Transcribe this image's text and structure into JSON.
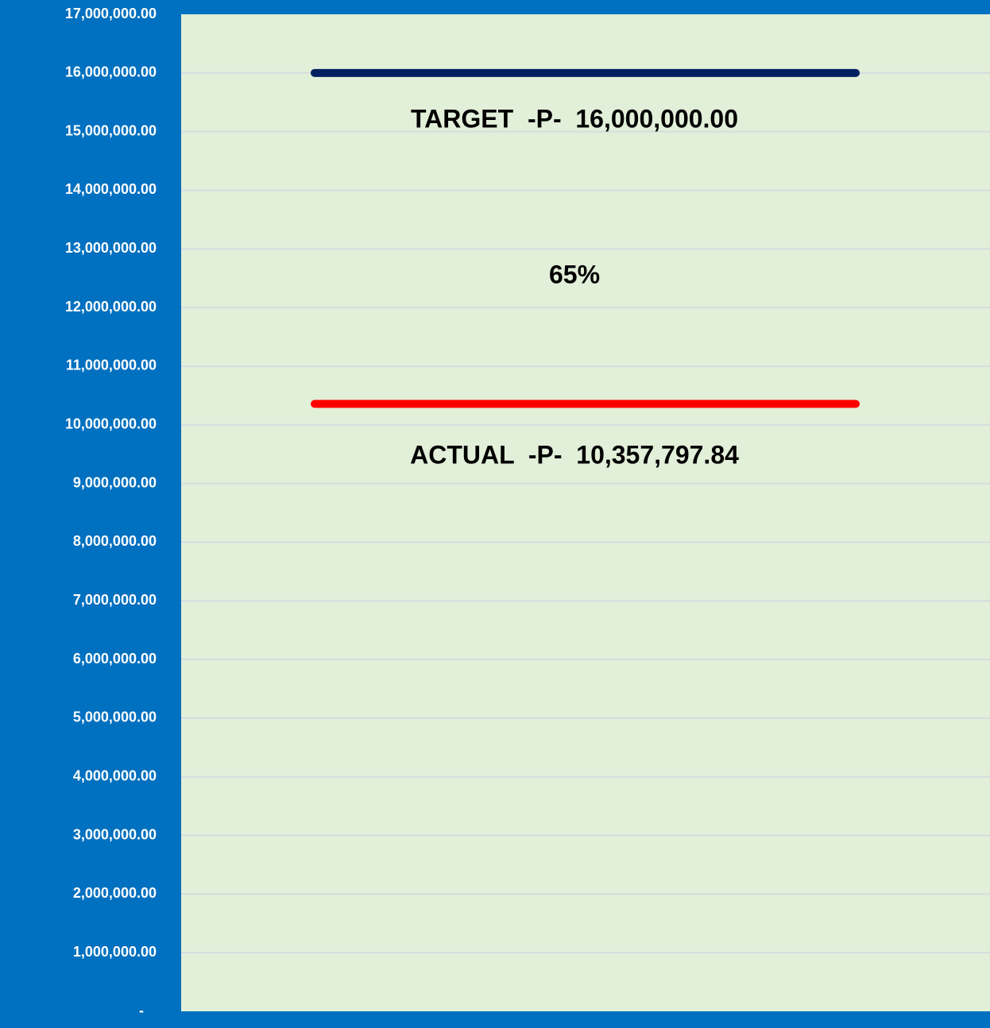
{
  "chart_data": {
    "type": "line",
    "series": [
      {
        "color": "#002060",
        "values": [
          16000000
        ]
      },
      {
        "color": "#ff0000",
        "values": [
          10357797.84
        ]
      }
    ],
    "annotations": [
      "TARGET  -P-  16,000,000.00",
      "65%",
      "ACTUAL  -P-  10,357,797.84"
    ],
    "ylim": [
      0,
      17000000
    ],
    "yticks": [
      {
        "value": 0,
        "label": "-"
      },
      {
        "value": 1000000,
        "label": "1,000,000.00"
      },
      {
        "value": 2000000,
        "label": "2,000,000.00"
      },
      {
        "value": 3000000,
        "label": "3,000,000.00"
      },
      {
        "value": 4000000,
        "label": "4,000,000.00"
      },
      {
        "value": 5000000,
        "label": "5,000,000.00"
      },
      {
        "value": 6000000,
        "label": "6,000,000.00"
      },
      {
        "value": 7000000,
        "label": "7,000,000.00"
      },
      {
        "value": 8000000,
        "label": "8,000,000.00"
      },
      {
        "value": 9000000,
        "label": "9,000,000.00"
      },
      {
        "value": 10000000,
        "label": "10,000,000.00"
      },
      {
        "value": 11000000,
        "label": "11,000,000.00"
      },
      {
        "value": 12000000,
        "label": "12,000,000.00"
      },
      {
        "value": 13000000,
        "label": "13,000,000.00"
      },
      {
        "value": 14000000,
        "label": "14,000,000.00"
      },
      {
        "value": 15000000,
        "label": "15,000,000.00"
      },
      {
        "value": 16000000,
        "label": "16,000,000.00"
      },
      {
        "value": 17000000,
        "label": "17,000,000.00"
      }
    ],
    "grid": true
  }
}
